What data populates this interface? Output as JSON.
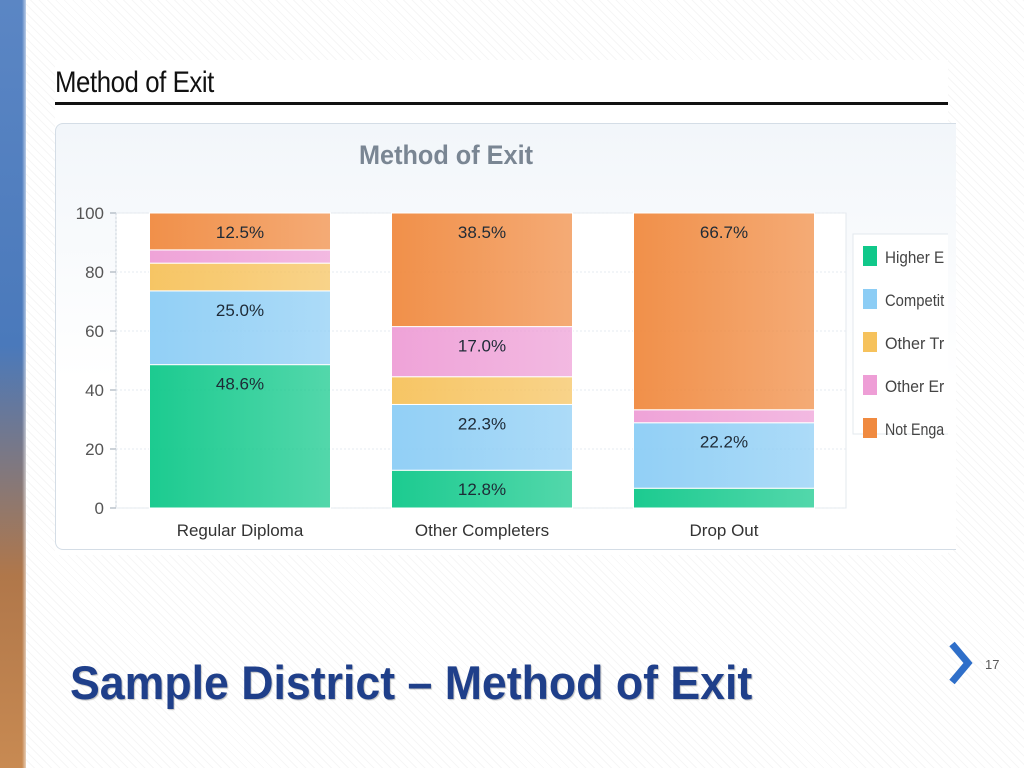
{
  "slide": {
    "title": "Sample District – Method of Exit",
    "page_number": "17"
  },
  "screenshot": {
    "heading": "Method of Exit"
  },
  "chart_data": {
    "type": "bar",
    "stacked": true,
    "title": "Method of Exit",
    "xlabel": "",
    "ylabel": "",
    "ylim": [
      0,
      100
    ],
    "yticks": [
      0,
      20,
      40,
      60,
      80,
      100
    ],
    "categories": [
      "Regular Diploma",
      "Other Completers",
      "Drop Out"
    ],
    "legend_position": "right",
    "series": [
      {
        "name": "Higher E",
        "color": "#10c88a",
        "values": [
          48.6,
          12.8,
          6.7
        ],
        "labels": [
          "48.6%",
          "12.8%",
          ""
        ]
      },
      {
        "name": "Competit",
        "color": "#8ccdf5",
        "values": [
          25.0,
          22.3,
          22.2
        ],
        "labels": [
          "25.0%",
          "22.3%",
          "22.2%"
        ]
      },
      {
        "name": "Other Tr",
        "color": "#f6c25c",
        "values": [
          9.4,
          9.4,
          0
        ],
        "labels": [
          "",
          "",
          ""
        ]
      },
      {
        "name": "Other Er",
        "color": "#ee9ed6",
        "values": [
          4.5,
          17.0,
          4.4
        ],
        "labels": [
          "",
          "17.0%",
          ""
        ]
      },
      {
        "name": "Not Enga",
        "color": "#f08a40",
        "values": [
          12.5,
          38.5,
          66.7
        ],
        "labels": [
          "12.5%",
          "38.5%",
          "66.7%"
        ]
      }
    ]
  }
}
